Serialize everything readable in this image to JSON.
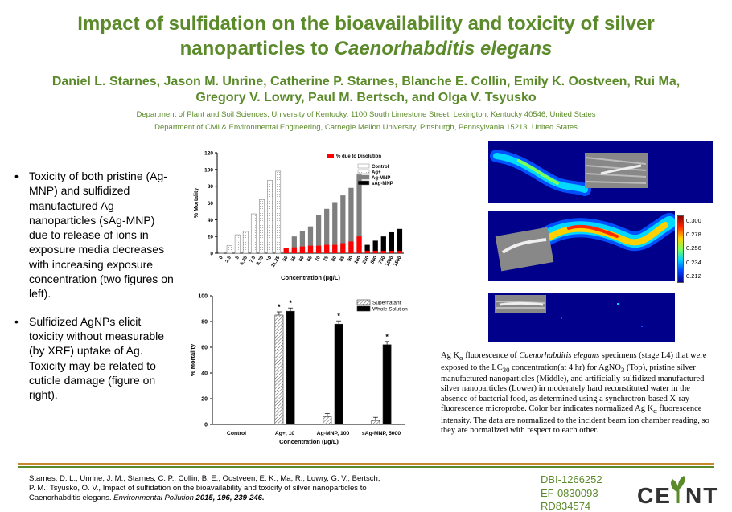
{
  "title": {
    "line1": "Impact of sulfidation on the bioavailability and toxicity of silver",
    "line2_prefix": "nanoparticles to ",
    "line2_species": "Caenorhabditis elegans"
  },
  "authors": {
    "line1": "Daniel L. Starnes, Jason M. Unrine, Catherine P. Starnes, Blanche E. Collin, Emily K. Oostveen,  Rui Ma,",
    "line2": "Gregory V. Lowry, Paul M. Bertsch, and Olga V. Tsyusko"
  },
  "affiliations": [
    "Department of Plant and Soil Sciences, University of Kentucky, 1100 South Limestone Street, Lexington, Kentucky 40546, United  States",
    "Department of Civil & Environmental Engineering, Carnegie Mellon University, Pittsburgh, Pennsylvania 15213. United States"
  ],
  "bullets": [
    "Toxicity of both pristine (Ag-MNP) and sulfidized manufactured Ag nanoparticles (sAg-MNP) due to release of ions in exposure media decreases with increasing exposure concentration (two figures on left).",
    "Sulfidized AgNPs elicit toxicity without measurable (by XRF) uptake of Ag.  Toxicity may be related to cuticle damage (figure on right)."
  ],
  "caption": {
    "part1": "Ag K",
    "sub1": "α",
    "part2": " fluorescence of ",
    "species": "Caenorhabditis elegans",
    "part3": " specimens (stage L4) that were exposed to the LC",
    "sub2": "30",
    "part4": " concentration(at 4 hr) for AgNO",
    "sub3": "3",
    "part5": " (Top), pristine silver manufactured nanoparticles (Middle), and artificially sulfidized manufactured silver nanoparticles (Lower) in moderately hard reconstituted water in the absence of bacterial food, as determined using a synchrotron-based X-ray fluorescence microprobe.  Color bar indicates normalized Ag K",
    "sub4": "α",
    "part6": " fluorescence intensity.  The data are normalized to the incident beam ion chamber reading, so they are normalized with respect to each other."
  },
  "colorbar": {
    "ticks": [
      "0.300",
      "0.278",
      "0.256",
      "0.234",
      "0.212"
    ],
    "colors": [
      "#8b0000",
      "#ff2a00",
      "#ffd000",
      "#7dff5a",
      "#00cfff",
      "#0040ff",
      "#00008b"
    ]
  },
  "citation": {
    "authors": "Starnes, D. L.; Unrine, J. M.; Starnes, C. P.; Collin, B. E.; Oostveen, E. K.; Ma, R.; Lowry, G. V.; Bertsch, P. M.; Tsyusko, O. V., Impact of sulfidation on the bioavailability and toxicity of silver nanoparticles to Caenorhabditis elegans. ",
    "journal": "Environmental Pollution",
    "volume": " 2015, 196, 239-246."
  },
  "grants": [
    "DBI-1266252",
    "EF-0830093",
    "RD834574"
  ],
  "logo": {
    "text_left": "CE",
    "text_right": "NT"
  },
  "accent_color": "#5b8a2a",
  "chart_data": [
    {
      "type": "bar",
      "xlabel": "Concentration (μg/L)",
      "ylabel": "% Mortality",
      "ylim": [
        0,
        120
      ],
      "yticks": [
        0,
        20,
        40,
        60,
        80,
        100,
        120
      ],
      "legend_top": [
        "% due to Disolution"
      ],
      "legend": [
        "Control",
        "Ag+",
        "Ag-MNP",
        "sAg-MNP"
      ],
      "categories": [
        "0",
        "2.5",
        "5",
        "6.25",
        "7.5",
        "8.75",
        "10",
        "11.25",
        "50",
        "55",
        "60",
        "65",
        "70",
        "75",
        "80",
        "85",
        "90",
        "100",
        "250",
        "500",
        "750",
        "1000",
        "1500"
      ],
      "series": [
        {
          "name": "Control",
          "values": [
            1,
            null,
            null,
            null,
            null,
            null,
            null,
            null,
            null,
            null,
            null,
            null,
            null,
            null,
            null,
            null,
            null,
            null,
            null,
            null,
            null,
            null,
            null
          ]
        },
        {
          "name": "Ag+",
          "values": [
            null,
            9,
            22,
            26,
            47,
            64,
            87,
            98,
            null,
            null,
            null,
            null,
            null,
            null,
            null,
            null,
            null,
            null,
            null,
            null,
            null,
            null,
            null
          ]
        },
        {
          "name": "Ag-MNP",
          "values": [
            null,
            null,
            null,
            null,
            null,
            null,
            null,
            null,
            6,
            20,
            26,
            32,
            46,
            53,
            61,
            69,
            78,
            94,
            null,
            null,
            null,
            null,
            null
          ]
        },
        {
          "name": "sAg-MNP",
          "values": [
            null,
            null,
            null,
            null,
            null,
            null,
            null,
            null,
            null,
            null,
            null,
            null,
            null,
            null,
            null,
            null,
            null,
            null,
            10,
            15,
            20,
            25,
            29
          ]
        },
        {
          "name": "% due to Disolution",
          "values": [
            null,
            null,
            null,
            null,
            null,
            null,
            null,
            null,
            6,
            7,
            8,
            9,
            9,
            10,
            10,
            12,
            14,
            20,
            3,
            3,
            3,
            3,
            3
          ]
        }
      ]
    },
    {
      "type": "bar",
      "xlabel": "Concentration (μg/L)",
      "ylabel": "% Mortality",
      "ylim": [
        0,
        100
      ],
      "yticks": [
        0,
        20,
        40,
        60,
        80,
        100
      ],
      "categories": [
        "Control",
        "Ag+, 10",
        "Ag-MNP, 100",
        "sAg-MNP, 5000"
      ],
      "series": [
        {
          "name": "Supernatant",
          "values": [
            0,
            85,
            6,
            3
          ]
        },
        {
          "name": "Whole Solution",
          "values": [
            0,
            88,
            78,
            62
          ]
        }
      ],
      "significance": [
        "",
        "* *",
        "*",
        "*"
      ]
    }
  ]
}
